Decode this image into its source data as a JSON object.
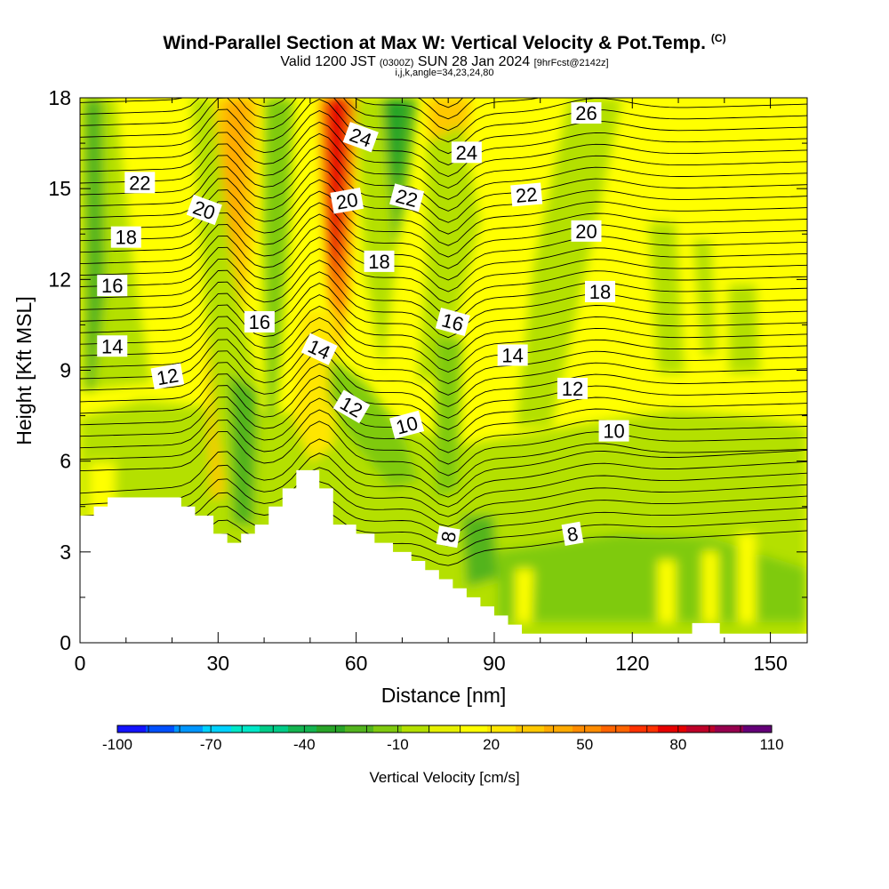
{
  "title": {
    "main": "Wind-Parallel Section at Max W: Vertical Velocity & Pot.Temp.",
    "copyright": "(C)",
    "valid_prefix": "Valid 1200 JST",
    "valid_utc": "(0300Z)",
    "valid_date": "SUN 28 Jan 2024",
    "forecast": "[9hrFcst@2142z]",
    "indices": "i,j,k,angle=34,23,24,80"
  },
  "chart_data": {
    "type": "heatmap",
    "xlabel": "Distance [nm]",
    "ylabel": "Height [Kft MSL]",
    "xlim": [
      0,
      158
    ],
    "ylim": [
      0,
      18
    ],
    "x_ticks": [
      0,
      30,
      60,
      90,
      120,
      150
    ],
    "y_ticks": [
      0,
      3,
      6,
      9,
      12,
      15,
      18
    ],
    "colorbar": {
      "label": "Vertical Velocity [cm/s]",
      "min": -100,
      "max": 110,
      "step": 10,
      "tick_labels": [
        -100,
        -70,
        -40,
        -10,
        20,
        50,
        80,
        110
      ],
      "colors": [
        "#1414ff",
        "#0050ff",
        "#0096ff",
        "#00d2ff",
        "#00e8c8",
        "#00cc88",
        "#14b450",
        "#28a428",
        "#52b41e",
        "#7fca0f",
        "#b4e000",
        "#e6f000",
        "#ffff00",
        "#ffe600",
        "#ffc800",
        "#ffaa00",
        "#ff8c00",
        "#ff6400",
        "#ff3200",
        "#e60000",
        "#be0028",
        "#96004e",
        "#640078"
      ]
    },
    "terrain_profile": [
      [
        0,
        4.2
      ],
      [
        3,
        4.2
      ],
      [
        3,
        4.5
      ],
      [
        6,
        4.5
      ],
      [
        6,
        4.8
      ],
      [
        22,
        4.8
      ],
      [
        22,
        4.5
      ],
      [
        25,
        4.5
      ],
      [
        25,
        4.2
      ],
      [
        29,
        4.2
      ],
      [
        29,
        3.6
      ],
      [
        32,
        3.6
      ],
      [
        32,
        3.3
      ],
      [
        35,
        3.3
      ],
      [
        35,
        3.6
      ],
      [
        38,
        3.6
      ],
      [
        38,
        3.9
      ],
      [
        41,
        3.9
      ],
      [
        41,
        4.5
      ],
      [
        44,
        4.5
      ],
      [
        44,
        5.1
      ],
      [
        47,
        5.1
      ],
      [
        47,
        5.7
      ],
      [
        52,
        5.7
      ],
      [
        52,
        5.1
      ],
      [
        55,
        5.1
      ],
      [
        55,
        3.9
      ],
      [
        60,
        3.9
      ],
      [
        60,
        3.6
      ],
      [
        64,
        3.6
      ],
      [
        64,
        3.3
      ],
      [
        68,
        3.3
      ],
      [
        68,
        3.0
      ],
      [
        72,
        3.0
      ],
      [
        72,
        2.7
      ],
      [
        75,
        2.7
      ],
      [
        75,
        2.4
      ],
      [
        78,
        2.4
      ],
      [
        78,
        2.1
      ],
      [
        81,
        2.1
      ],
      [
        81,
        1.8
      ],
      [
        84,
        1.8
      ],
      [
        84,
        1.5
      ],
      [
        87,
        1.5
      ],
      [
        87,
        1.2
      ],
      [
        90,
        1.2
      ],
      [
        90,
        0.9
      ],
      [
        93,
        0.9
      ],
      [
        93,
        0.6
      ],
      [
        96,
        0.6
      ],
      [
        96,
        0.3
      ],
      [
        133,
        0.3
      ],
      [
        133,
        0.65
      ],
      [
        139,
        0.65
      ],
      [
        139,
        0.3
      ],
      [
        158,
        0.3
      ]
    ],
    "theta_contour_labels": [
      {
        "text": "22",
        "x": 13,
        "y": 15.2,
        "angle": 0
      },
      {
        "text": "20",
        "x": 27,
        "y": 14.3,
        "angle": 20
      },
      {
        "text": "18",
        "x": 10,
        "y": 13.4,
        "angle": 0
      },
      {
        "text": "16",
        "x": 7,
        "y": 11.8,
        "angle": 0
      },
      {
        "text": "14",
        "x": 7,
        "y": 9.8,
        "angle": 0
      },
      {
        "text": "12",
        "x": 19,
        "y": 8.8,
        "angle": -10
      },
      {
        "text": "16",
        "x": 39,
        "y": 10.6,
        "angle": 0
      },
      {
        "text": "14",
        "x": 52,
        "y": 9.7,
        "angle": 25
      },
      {
        "text": "12",
        "x": 59,
        "y": 7.8,
        "angle": 30
      },
      {
        "text": "10",
        "x": 71,
        "y": 7.2,
        "angle": -15
      },
      {
        "text": "24",
        "x": 61,
        "y": 16.7,
        "angle": 20
      },
      {
        "text": "20",
        "x": 58,
        "y": 14.6,
        "angle": -10
      },
      {
        "text": "22",
        "x": 71,
        "y": 14.7,
        "angle": 15
      },
      {
        "text": "18",
        "x": 65,
        "y": 12.6,
        "angle": 0
      },
      {
        "text": "24",
        "x": 84,
        "y": 16.2,
        "angle": 0
      },
      {
        "text": "16",
        "x": 81,
        "y": 10.6,
        "angle": 15
      },
      {
        "text": "22",
        "x": 97,
        "y": 14.8,
        "angle": -5
      },
      {
        "text": "14",
        "x": 94,
        "y": 9.5,
        "angle": 0
      },
      {
        "text": "26",
        "x": 110,
        "y": 17.5,
        "angle": 0
      },
      {
        "text": "20",
        "x": 110,
        "y": 13.6,
        "angle": 0
      },
      {
        "text": "18",
        "x": 113,
        "y": 11.6,
        "angle": 0
      },
      {
        "text": "12",
        "x": 107,
        "y": 8.4,
        "angle": 0
      },
      {
        "text": "10",
        "x": 116,
        "y": 7.0,
        "angle": 0
      },
      {
        "text": "8",
        "x": 107,
        "y": 3.6,
        "angle": -10
      },
      {
        "text": "8",
        "x": 80,
        "y": 3.5,
        "angle": -80
      }
    ]
  }
}
